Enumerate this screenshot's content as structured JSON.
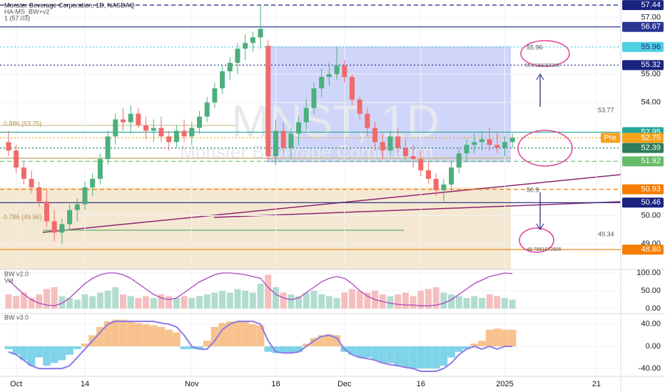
{
  "chart_data": [
    {
      "type": "candlestick",
      "title": "Monster Beverage Corporation, 1D, NASDAQ",
      "subtitle": "HA-MS_BW+v2",
      "watermark": "MNST, 1D",
      "watermark_sub": "Monster Beverage Corporation",
      "annotations": [
        "1 (57.03)",
        "0.886 (53.25)",
        "0.786 (49.96)",
        "53.77",
        "49.34",
        "55.96",
        "55.2195727385",
        "50.9",
        "48.7981872905"
      ],
      "pre_label": "Pre",
      "xlim": [
        -1.12,
        80.19
      ],
      "xticks": [
        {
          "value": 1,
          "label": "Oct"
        },
        {
          "value": 10,
          "label": "14"
        },
        {
          "value": 24,
          "label": "Nov"
        },
        {
          "value": 35,
          "label": "18"
        },
        {
          "value": 44,
          "label": "Dec"
        },
        {
          "value": 54,
          "label": "16"
        },
        {
          "value": 65,
          "label": "2025"
        },
        {
          "value": 77,
          "label": "21"
        }
      ],
      "ylim": [
        48.1,
        57.62
      ],
      "yticks": [
        {
          "value": 57,
          "label": "57.00"
        },
        {
          "value": 55,
          "label": "55.00"
        },
        {
          "value": 54,
          "label": "54.00"
        },
        {
          "value": 50,
          "label": "50.00"
        },
        {
          "value": 49,
          "label": "49.00"
        }
      ],
      "up_color": "#4caf7d",
      "down_color": "#ef6b6b",
      "open": [
        52.6,
        52.3,
        51.7,
        51.3,
        51.0,
        50.5,
        49.8,
        49.4,
        49.7,
        50.2,
        50.4,
        51.0,
        51.3,
        52.0,
        52.8,
        53.4,
        53.3,
        53.6,
        53.2,
        53.0,
        53.1,
        52.8,
        52.6,
        53.0,
        52.8,
        53.1,
        53.5,
        54.0,
        54.5,
        55.1,
        55.4,
        55.9,
        56.1,
        56.3,
        56.0,
        52.1,
        53.0,
        52.4,
        52.9,
        53.3,
        53.8,
        54.5,
        54.9,
        55.0,
        55.3,
        54.9,
        54.1,
        53.6,
        53.1,
        52.6,
        52.3,
        52.8,
        52.4,
        52.1,
        52.0,
        51.6,
        51.3,
        50.9,
        51.1,
        51.7,
        52.2,
        52.5,
        52.6,
        52.7,
        52.5,
        52.4,
        52.6
      ],
      "high": [
        53.0,
        52.5,
        51.9,
        51.6,
        51.2,
        50.9,
        50.2,
        49.9,
        50.4,
        50.6,
        51.2,
        51.5,
        52.2,
        53.0,
        53.6,
        53.8,
        53.9,
        53.8,
        53.5,
        53.4,
        53.5,
        53.0,
        53.2,
        53.4,
        53.3,
        53.7,
        54.2,
        54.7,
        55.3,
        55.6,
        56.1,
        56.4,
        56.5,
        57.44,
        56.2,
        53.4,
        53.3,
        53.1,
        53.5,
        54.1,
        54.7,
        55.2,
        55.4,
        55.96,
        55.5,
        55.0,
        54.2,
        53.8,
        53.3,
        52.9,
        53.0,
        53.1,
        52.7,
        52.5,
        52.3,
        51.9,
        51.5,
        51.3,
        51.9,
        52.4,
        52.7,
        52.9,
        53.0,
        53.1,
        52.95,
        52.8,
        52.9
      ],
      "low": [
        52.1,
        51.5,
        51.1,
        50.8,
        50.3,
        49.6,
        49.1,
        49.0,
        49.5,
        49.8,
        50.2,
        50.7,
        51.1,
        51.8,
        52.5,
        53.0,
        52.9,
        53.1,
        52.7,
        52.6,
        52.6,
        52.3,
        52.4,
        52.6,
        52.5,
        52.9,
        53.3,
        53.8,
        54.3,
        54.8,
        55.0,
        55.5,
        55.8,
        55.9,
        51.9,
        51.8,
        52.2,
        52.0,
        52.5,
        53.0,
        53.6,
        54.2,
        54.6,
        54.8,
        54.7,
        53.9,
        53.4,
        52.8,
        52.3,
        52.0,
        52.1,
        52.2,
        51.9,
        51.7,
        51.4,
        51.1,
        50.7,
        50.5,
        50.9,
        51.5,
        51.9,
        52.2,
        52.3,
        52.3,
        52.2,
        52.1,
        52.39
      ],
      "close": [
        52.3,
        51.7,
        51.3,
        51.0,
        50.5,
        49.8,
        49.4,
        49.7,
        50.2,
        50.4,
        51.0,
        51.3,
        52.0,
        52.8,
        53.4,
        53.3,
        53.6,
        53.2,
        53.0,
        53.1,
        52.8,
        52.6,
        53.0,
        52.8,
        53.1,
        53.5,
        54.0,
        54.5,
        55.1,
        55.4,
        55.9,
        56.1,
        56.3,
        56.6,
        52.1,
        53.0,
        52.4,
        52.9,
        53.3,
        53.8,
        54.5,
        54.9,
        55.0,
        55.3,
        54.9,
        54.1,
        53.6,
        53.1,
        52.6,
        52.3,
        52.8,
        52.4,
        52.1,
        52.0,
        51.6,
        51.3,
        50.9,
        51.1,
        51.7,
        52.2,
        52.5,
        52.6,
        52.7,
        52.5,
        52.4,
        52.6,
        52.75
      ],
      "levels": [
        {
          "value": 57.44,
          "color": "#1a237e",
          "style": "dashed"
        },
        {
          "value": 56.67,
          "color": "#283593",
          "style": "solid"
        },
        {
          "value": 55.96,
          "color": "#4dd0e1",
          "style": "dotted",
          "text_color": "#1a237e"
        },
        {
          "value": 55.32,
          "color": "#1a237e",
          "style": "dotted"
        },
        {
          "value": 52.95,
          "color": "#26a69a",
          "style": "solid"
        },
        {
          "value": 52.75,
          "color": "#f7a21b",
          "style": "dotted"
        },
        {
          "value": 52.39,
          "color": "#2e7d5b",
          "style": "dotted"
        },
        {
          "value": 51.92,
          "color": "#66bb6a",
          "style": "dashed"
        },
        {
          "value": 50.93,
          "color": "#f57c00",
          "style": "dashed"
        },
        {
          "value": 50.46,
          "color": "#1a237e",
          "style": "solid"
        },
        {
          "value": 48.8,
          "label": "48.80",
          "color": "#f57c00",
          "style": "solid"
        }
      ]
    },
    {
      "type": "bar",
      "title": "BW v2.0",
      "subtitle": "Vol",
      "ylim": [
        -14,
        110
      ],
      "yticks": [
        {
          "value": 100,
          "label": "100.00"
        },
        {
          "value": 50,
          "label": "50.00"
        },
        {
          "value": 0,
          "label": "0.00"
        }
      ],
      "up_color": "#a5d6c8",
      "down_color": "#f3b4b4",
      "line_color": "#ab47bc",
      "values": [
        40,
        35,
        45,
        30,
        40,
        55,
        60,
        35,
        30,
        25,
        40,
        35,
        45,
        50,
        60,
        40,
        35,
        30,
        35,
        30,
        40,
        35,
        30,
        35,
        30,
        35,
        40,
        45,
        50,
        45,
        55,
        50,
        45,
        70,
        95,
        60,
        45,
        40,
        35,
        45,
        50,
        40,
        35,
        30,
        45,
        55,
        50,
        45,
        50,
        40,
        35,
        40,
        45,
        35,
        50,
        55,
        60,
        45,
        40,
        35,
        30,
        35,
        30,
        40,
        35,
        30,
        25
      ],
      "line_values": [
        80,
        60,
        40,
        25,
        15,
        10,
        8,
        15,
        30,
        50,
        70,
        85,
        95,
        100,
        100,
        95,
        85,
        70,
        55,
        40,
        30,
        25,
        30,
        45,
        60,
        75,
        85,
        95,
        100,
        100,
        98,
        95,
        90,
        85,
        60,
        40,
        30,
        25,
        30,
        45,
        60,
        75,
        85,
        90,
        85,
        70,
        50,
        35,
        25,
        20,
        15,
        12,
        10,
        10,
        8,
        8,
        10,
        15,
        25,
        40,
        55,
        70,
        80,
        90,
        95,
        100,
        98
      ]
    },
    {
      "type": "histogram_line",
      "title": "BW v3.0",
      "ylim": [
        -54,
        59
      ],
      "yticks": [
        {
          "value": 40,
          "label": "40.00"
        },
        {
          "value": 0,
          "label": "0.00"
        },
        {
          "value": -40,
          "label": "-40.00"
        }
      ],
      "pos_color": "#f7c28e",
      "neg_color": "#7fd3e8",
      "line_color": "#8c7ae6",
      "values": [
        -5,
        -15,
        -25,
        -35,
        -20,
        -35,
        -30,
        -25,
        -15,
        -5,
        5,
        20,
        35,
        45,
        48,
        48,
        45,
        42,
        40,
        38,
        35,
        30,
        25,
        -5,
        -5,
        -5,
        10,
        35,
        42,
        45,
        45,
        45,
        40,
        38,
        -10,
        -12,
        -12,
        -12,
        -10,
        5,
        15,
        20,
        22,
        20,
        -10,
        -15,
        -20,
        -20,
        -25,
        -30,
        -30,
        -35,
        -38,
        -40,
        -40,
        -40,
        -40,
        -35,
        -20,
        -10,
        -5,
        5,
        10,
        30,
        32,
        30,
        30
      ],
      "line_values": [
        -10,
        -15,
        -25,
        -35,
        -40,
        -40,
        -40,
        -40,
        -35,
        -20,
        -5,
        10,
        25,
        40,
        45,
        45,
        45,
        45,
        45,
        45,
        42,
        40,
        35,
        20,
        0,
        -5,
        -5,
        10,
        30,
        40,
        45,
        45,
        45,
        40,
        10,
        -10,
        -12,
        -12,
        -10,
        0,
        10,
        18,
        20,
        15,
        -5,
        -15,
        -20,
        -22,
        -25,
        -30,
        -33,
        -35,
        -38,
        -40,
        -45,
        -45,
        -45,
        -40,
        -30,
        -15,
        -5,
        0,
        -5,
        0,
        -5,
        0,
        0
      ]
    }
  ]
}
